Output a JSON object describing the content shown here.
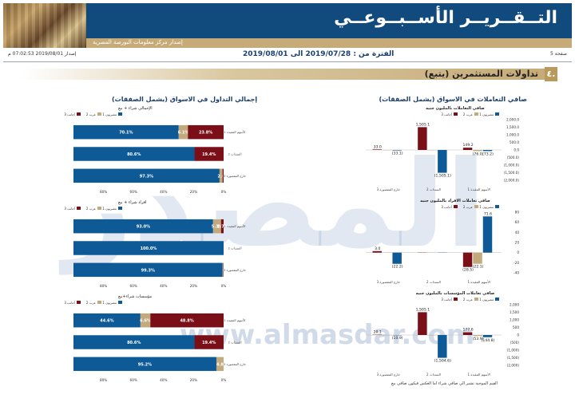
{
  "header": {
    "title": "التــقــريــر الأســبــوعــي",
    "subtitle": "إصدار مركز معلومات البورصة المصرية"
  },
  "info": {
    "page": "صفحة 5",
    "period": "الفترة من : 2019/07/28 الى 2019/08/01",
    "issued": "إصدار 2019/08/01 07:02:53 م"
  },
  "section": {
    "number": "٤.",
    "title": "تداولات المستثمرين (يتبع)"
  },
  "watermark": {
    "logo": "المصدر",
    "url": "www.almasdar.com"
  },
  "right_title": "صافي التعاملات في الاسواق (يشمل الصفقات)",
  "left_title": "إجمالي التداول في الاسواق (يشمل الصفقات)",
  "colors": {
    "egyptian": "#0e5a96",
    "arab": "#c2aa7c",
    "foreign": "#7a0f18"
  },
  "footnote": "القيم الموجبة تشير الي صافي شراء اما العكس فيكون صافي بيع",
  "chart_data": [
    {
      "type": "bar",
      "title": "صافي التعاملات بالمليون جنيه",
      "legend": [
        "مصريون 1",
        "عرب 2",
        "أجانب 3"
      ],
      "categories": [
        "الأسهم المقيدة 1",
        "السندات 2",
        "خارج المقصورة 3"
      ],
      "series": [
        {
          "name": "مصريون 1",
          "values": [
            -73.2,
            -1505.1,
            -33.1
          ],
          "labels": [
            "(73.2)",
            "(1,505.1)",
            "(33.1)"
          ]
        },
        {
          "name": "عرب 2",
          "values": [
            -76.0,
            0,
            0
          ],
          "labels": [
            "(76.0)",
            "",
            ""
          ]
        },
        {
          "name": "أجانب 3",
          "values": [
            149.2,
            1505.1,
            33.0
          ],
          "labels": [
            "149.2",
            "1,505.1",
            "33.0"
          ]
        }
      ],
      "yticks": [
        "2,000.0",
        "1,500.0",
        "1,000.0",
        "500.0",
        "0.0",
        "(500.0)",
        "(1,000.0)",
        "(1,500.0)",
        "(2,000.0)"
      ],
      "ylim": [
        -2000,
        2000
      ]
    },
    {
      "type": "bar",
      "title": "صافي تعاملات الافراد بالمليون جنيه",
      "legend": [
        "مصريون 1",
        "عرب 2",
        "أجانب 3"
      ],
      "categories": [
        "الأسهم المقيدة 1",
        "السندات 2",
        "خارج المقصورة 3"
      ],
      "series": [
        {
          "name": "مصريون 1",
          "values": [
            71.6,
            0,
            -22.2
          ],
          "labels": [
            "71.6",
            "",
            "(22.2)"
          ]
        },
        {
          "name": "عرب 2",
          "values": [
            -22.1,
            0,
            0
          ],
          "labels": [
            "(22.1)",
            "",
            ""
          ]
        },
        {
          "name": "أجانب 3",
          "values": [
            -28.5,
            0,
            3.0
          ],
          "labels": [
            "(28.5)",
            "",
            "3.0"
          ]
        }
      ],
      "yticks": [
        "80",
        "60",
        "40",
        "20",
        "0",
        "-20",
        "-40"
      ],
      "ylim": [
        -40,
        80
      ]
    },
    {
      "type": "bar",
      "title": "صافي تعاملات المؤسسات بالمليون جنيه",
      "legend": [
        "مصريون 1",
        "عرب 2",
        "أجانب 3"
      ],
      "categories": [
        "الأسهم المقيدة 1",
        "السندات 2",
        "خارج المقصورة 3"
      ],
      "series": [
        {
          "name": "مصريون 1",
          "values": [
            -144.8,
            -1504.6,
            -10.9
          ],
          "labels": [
            "(144.8)",
            "(1,504.6)",
            "(10.9)"
          ]
        },
        {
          "name": "عرب 2",
          "values": [
            -53.9,
            0,
            0
          ],
          "labels": [
            "(53.9)",
            "",
            ""
          ]
        },
        {
          "name": "أجانب 3",
          "values": [
            177.6,
            1505.1,
            20.1
          ],
          "labels": [
            "177.6",
            "1,505.1",
            "20.1"
          ]
        }
      ],
      "yticks": [
        "2,000",
        "1,500",
        "1,000",
        "500",
        "0",
        "(500)",
        "(1,000)",
        "(1,500)",
        "(2,000)"
      ],
      "ylim": [
        -2000,
        2000
      ]
    },
    {
      "type": "bar",
      "stacked": "percent",
      "orientation": "horizontal",
      "title": "الإجمالي شراء + بيع",
      "legend": [
        "مصريون 1",
        "عرب 2",
        "أجانب 3"
      ],
      "categories": [
        "الأسهم المقيدة 1",
        "السندات 2",
        "خارج المقصورة 3"
      ],
      "series": [
        {
          "name": "مصريون 1",
          "values": [
            70.1,
            80.6,
            97.3
          ]
        },
        {
          "name": "عرب 2",
          "values": [
            6.1,
            0.0,
            2.0
          ]
        },
        {
          "name": "أجانب 3",
          "values": [
            23.8,
            19.4,
            0.7
          ]
        }
      ],
      "labels": [
        [
          "70.1%",
          "6.1%",
          "23.8%"
        ],
        [
          "80.6%",
          "",
          "19.4%"
        ],
        [
          "97.3%",
          "2.0",
          ""
        ]
      ],
      "xticks": [
        "0%",
        "20%",
        "40%",
        "60%",
        "80%"
      ]
    },
    {
      "type": "bar",
      "stacked": "percent",
      "orientation": "horizontal",
      "title": "افراد شراء + بيع",
      "legend": [
        "مصريون 1",
        "عرب 2",
        "أجانب 3"
      ],
      "categories": [
        "الأسهم المقيدة 1",
        "السندات 2",
        "خارج المقصورة 3"
      ],
      "series": [
        {
          "name": "مصريون 1",
          "values": [
            93.0,
            100.0,
            99.3
          ]
        },
        {
          "name": "عرب 2",
          "values": [
            5.3,
            0.0,
            0.5
          ]
        },
        {
          "name": "أجانب 3",
          "values": [
            1.7,
            0.0,
            0.2
          ]
        }
      ],
      "labels": [
        [
          "93.0%",
          "5.3%",
          "1.7%"
        ],
        [
          "100.0%",
          "",
          ""
        ],
        [
          "99.3%",
          "0",
          ""
        ]
      ],
      "xticks": [
        "0%",
        "20%",
        "40%",
        "60%",
        "80%"
      ]
    },
    {
      "type": "bar",
      "stacked": "percent",
      "orientation": "horizontal",
      "title": "مؤسسات شراء+بيع",
      "legend": [
        "مصريون 1",
        "عرب 2",
        "أجانب 3"
      ],
      "categories": [
        "الأسهم المقيدة 1",
        "السندات 2",
        "خارج المقصورة 3"
      ],
      "series": [
        {
          "name": "مصريون 1",
          "values": [
            44.6,
            80.6,
            95.2
          ]
        },
        {
          "name": "عرب 2",
          "values": [
            6.6,
            0.0,
            4.8
          ]
        },
        {
          "name": "أجانب 3",
          "values": [
            48.8,
            19.4,
            0.0
          ]
        }
      ],
      "labels": [
        [
          "44.6%",
          "6.6%",
          "48.8%"
        ],
        [
          "80.6%",
          "",
          "19.4%"
        ],
        [
          "95.2%",
          "4.8",
          ""
        ]
      ],
      "xticks": [
        "0%",
        "20%",
        "40%",
        "60%",
        "80%"
      ]
    }
  ]
}
